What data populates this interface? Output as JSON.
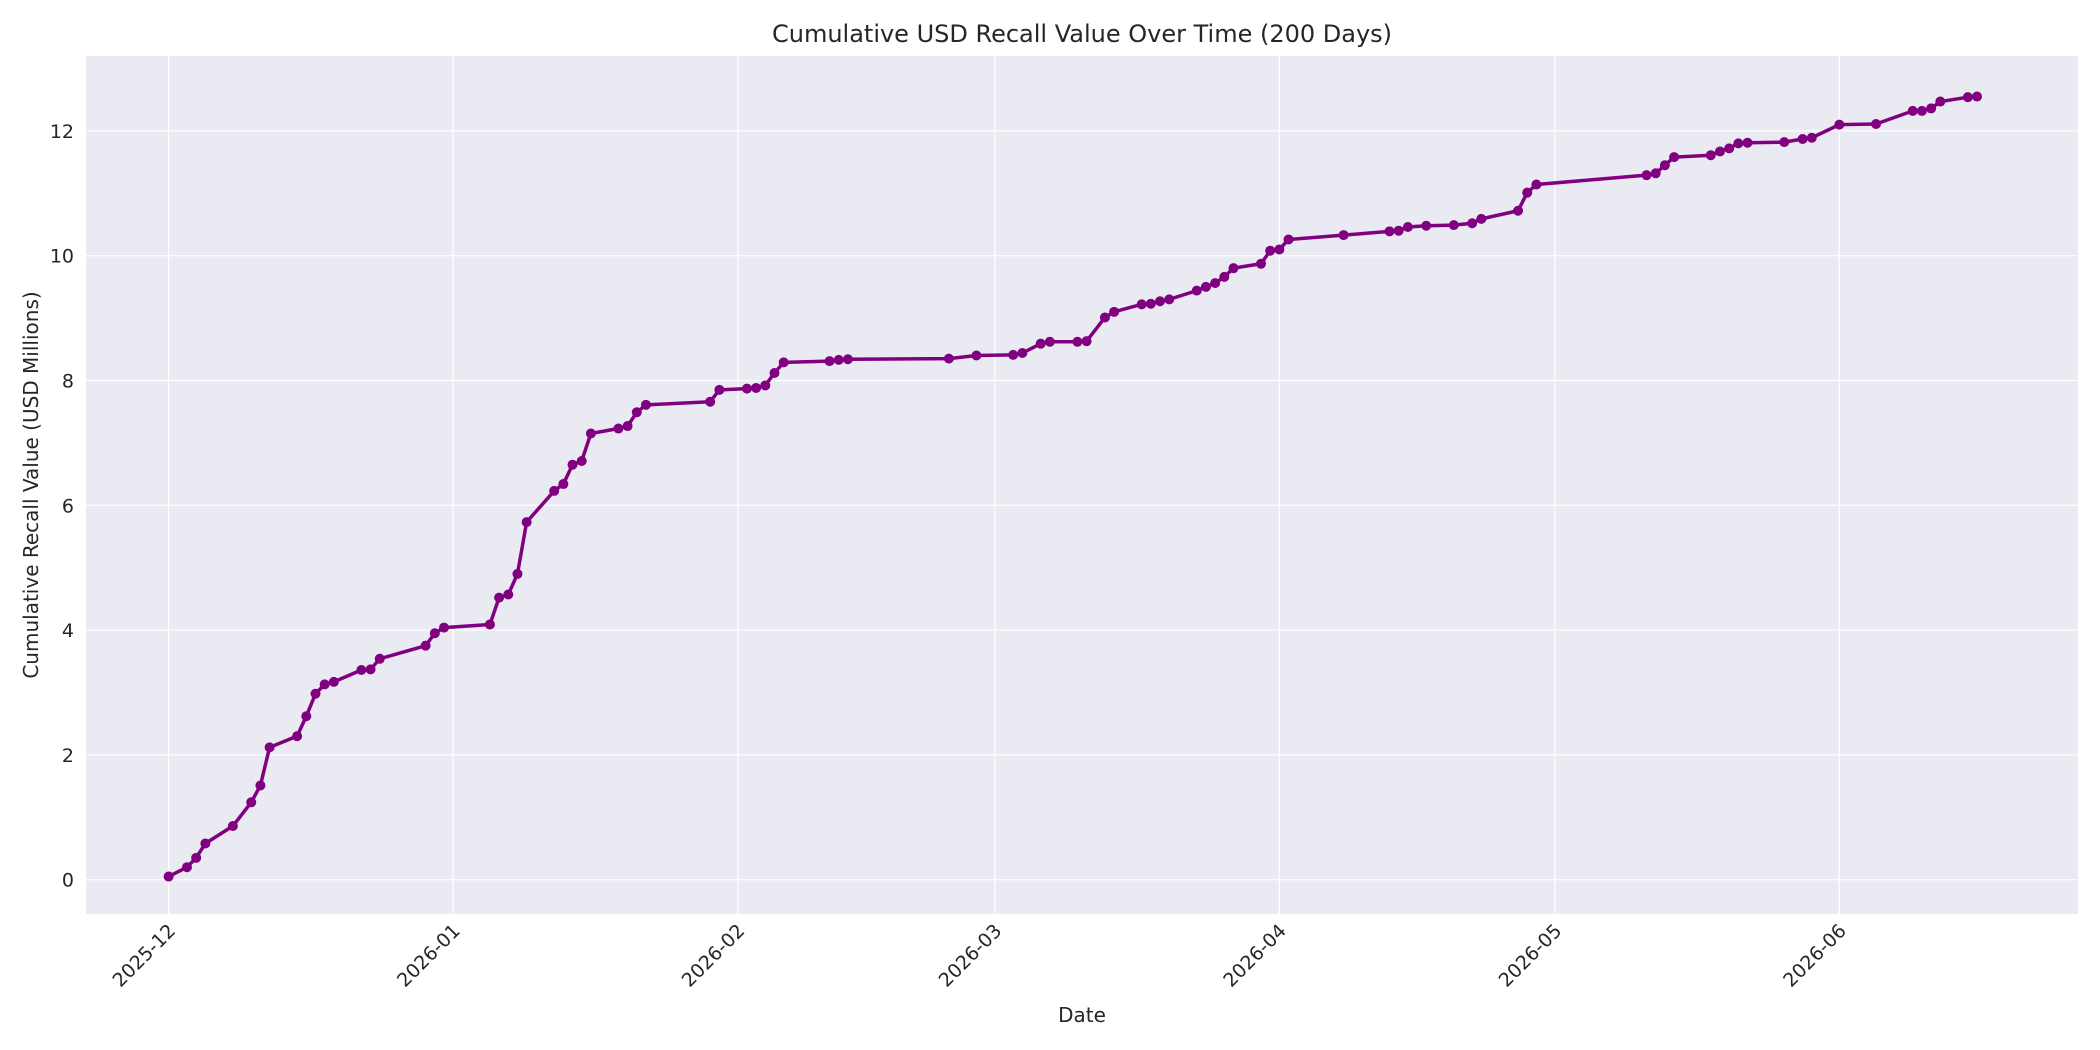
{
  "chart_data": {
    "type": "line",
    "title": "Cumulative USD Recall Value Over Time (200 Days)",
    "xlabel": "Date",
    "ylabel": "Cumulative Recall Value (USD Millions)",
    "x_tick_labels": [
      "2025-12",
      "2026-01",
      "2026-02",
      "2026-03",
      "2026-04",
      "2026-05",
      "2026-06"
    ],
    "x_ticks": [
      "2025-12-01",
      "2026-01-01",
      "2026-02-01",
      "2026-03-01",
      "2026-04-01",
      "2026-05-01",
      "2026-06-01"
    ],
    "xlim": [
      "2025-11-22",
      "2026-06-27"
    ],
    "y_ticks": [
      0,
      2,
      4,
      6,
      8,
      10,
      12
    ],
    "ylim": [
      -0.55,
      13.2
    ],
    "grid": true,
    "colors": {
      "line": "#800080",
      "plot_bg": "#EAEAF2",
      "grid": "#FFFFFF",
      "text": "#262626"
    },
    "series": [
      {
        "x": [
          "2025-12-01",
          "2025-12-03",
          "2025-12-04",
          "2025-12-05",
          "2025-12-08",
          "2025-12-10",
          "2025-12-11",
          "2025-12-12",
          "2025-12-15",
          "2025-12-16",
          "2025-12-17",
          "2025-12-18",
          "2025-12-19",
          "2025-12-22",
          "2025-12-23",
          "2025-12-24",
          "2025-12-29",
          "2025-12-30",
          "2025-12-31",
          "2026-01-05",
          "2026-01-06",
          "2026-01-07",
          "2026-01-08",
          "2026-01-09",
          "2026-01-12",
          "2026-01-13",
          "2026-01-14",
          "2026-01-15",
          "2026-01-16",
          "2026-01-19",
          "2026-01-20",
          "2026-01-21",
          "2026-01-22",
          "2026-01-29",
          "2026-01-30",
          "2026-02-02",
          "2026-02-03",
          "2026-02-04",
          "2026-02-05",
          "2026-02-06",
          "2026-02-11",
          "2026-02-12",
          "2026-02-13",
          "2026-02-24",
          "2026-02-27",
          "2026-03-03",
          "2026-03-04",
          "2026-03-06",
          "2026-03-07",
          "2026-03-10",
          "2026-03-11",
          "2026-03-13",
          "2026-03-14",
          "2026-03-17",
          "2026-03-18",
          "2026-03-19",
          "2026-03-20",
          "2026-03-23",
          "2026-03-24",
          "2026-03-25",
          "2026-03-26",
          "2026-03-27",
          "2026-03-30",
          "2026-03-31",
          "2026-04-01",
          "2026-04-02",
          "2026-04-08",
          "2026-04-13",
          "2026-04-14",
          "2026-04-15",
          "2026-04-17",
          "2026-04-20",
          "2026-04-22",
          "2026-04-23",
          "2026-04-27",
          "2026-04-28",
          "2026-04-29",
          "2026-05-11",
          "2026-05-12",
          "2026-05-13",
          "2026-05-14",
          "2026-05-18",
          "2026-05-19",
          "2026-05-20",
          "2026-05-21",
          "2026-05-22",
          "2026-05-26",
          "2026-05-28",
          "2026-05-29",
          "2026-06-01",
          "2026-06-05",
          "2026-06-09",
          "2026-06-10",
          "2026-06-11",
          "2026-06-12",
          "2026-06-15",
          "2026-06-16"
        ],
        "values": [
          0.05,
          0.2,
          0.35,
          0.58,
          0.86,
          1.24,
          1.51,
          2.12,
          2.3,
          2.62,
          2.98,
          3.13,
          3.17,
          3.36,
          3.37,
          3.54,
          3.75,
          3.95,
          4.04,
          4.09,
          4.52,
          4.57,
          4.9,
          5.73,
          6.23,
          6.34,
          6.65,
          6.71,
          7.15,
          7.23,
          7.27,
          7.49,
          7.61,
          7.66,
          7.85,
          7.87,
          7.88,
          7.92,
          8.12,
          8.29,
          8.31,
          8.33,
          8.34,
          8.35,
          8.4,
          8.41,
          8.44,
          8.59,
          8.62,
          8.62,
          8.63,
          9.01,
          9.1,
          9.22,
          9.23,
          9.27,
          9.3,
          9.44,
          9.5,
          9.56,
          9.66,
          9.8,
          9.87,
          10.08,
          10.1,
          10.26,
          10.33,
          10.39,
          10.4,
          10.46,
          10.48,
          10.49,
          10.52,
          10.59,
          10.72,
          11.01,
          11.14,
          11.29,
          11.32,
          11.45,
          11.58,
          11.61,
          11.67,
          11.72,
          11.8,
          11.81,
          11.82,
          11.87,
          11.89,
          12.1,
          12.11,
          12.32,
          12.32,
          12.36,
          12.47,
          12.54,
          12.55
        ]
      }
    ]
  }
}
